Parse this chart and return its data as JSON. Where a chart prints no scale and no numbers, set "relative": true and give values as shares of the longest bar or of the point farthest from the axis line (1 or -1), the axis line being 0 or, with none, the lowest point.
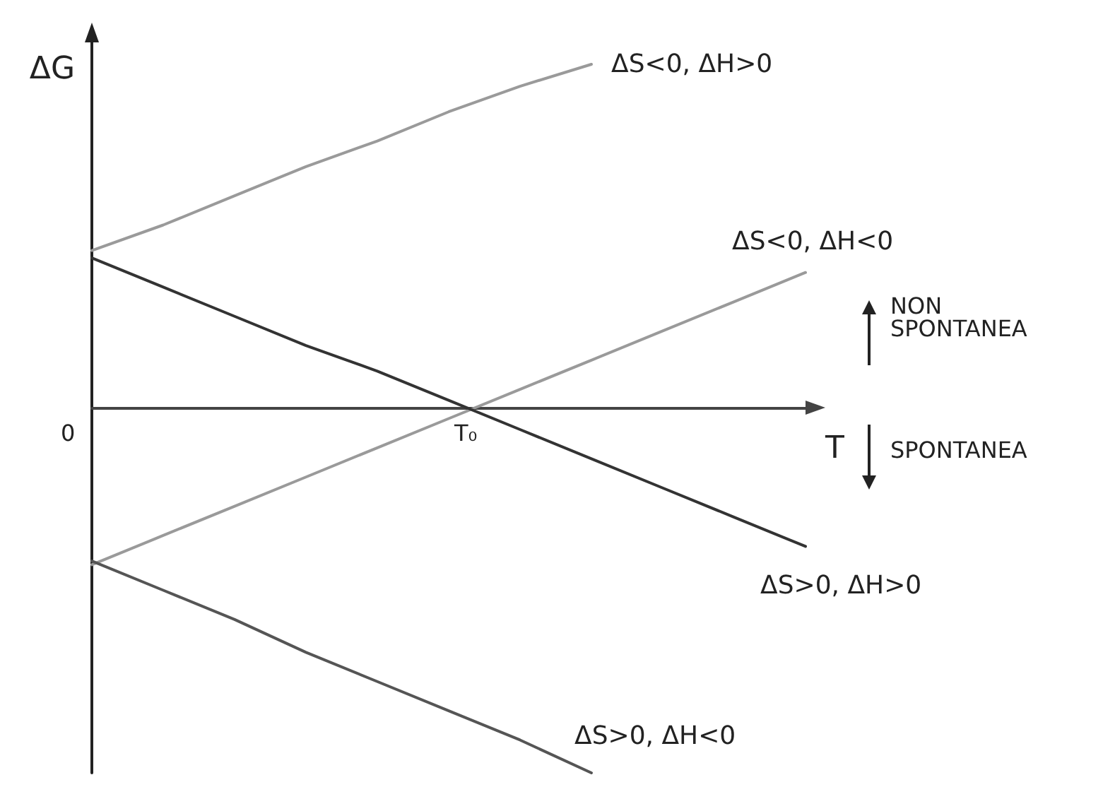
{
  "chart_data": {
    "type": "line",
    "relative": true,
    "xlabel": "T",
    "ylabel": "ΔG",
    "categories": [
      null,
      null,
      null,
      null,
      null,
      null,
      null,
      null,
      null,
      null,
      null
    ],
    "series": [
      {
        "name": "ΔS<0, ΔH>0",
        "color": "#9a9a9a",
        "values": [
          0.43,
          0.5,
          0.58,
          0.66,
          0.73,
          0.81,
          0.88,
          0.94,
          null,
          null,
          null
        ]
      },
      {
        "name": "ΔS<0, ΔH<0",
        "color": "#9a9a9a",
        "values": [
          -0.43,
          -0.35,
          -0.27,
          -0.19,
          -0.11,
          -0.03,
          0.05,
          0.13,
          0.21,
          0.29,
          0.37
        ]
      },
      {
        "name": "ΔS>0, ΔH>0",
        "color": "#333333",
        "values": [
          0.41,
          0.33,
          0.25,
          0.17,
          0.1,
          0.02,
          -0.06,
          -0.14,
          -0.22,
          -0.3,
          -0.38
        ]
      },
      {
        "name": "ΔS>0, ΔH<0",
        "color": "#555555",
        "values": [
          -0.42,
          -0.5,
          -0.58,
          -0.67,
          -0.75,
          -0.83,
          -0.91,
          -1,
          null,
          null,
          null
        ]
      }
    ],
    "annotations": [
      "0",
      "T₀",
      "NON SPONTANEA",
      "SPONTANEA"
    ],
    "legend": false,
    "grid": false,
    "marker": "none",
    "line_style": "solid"
  }
}
